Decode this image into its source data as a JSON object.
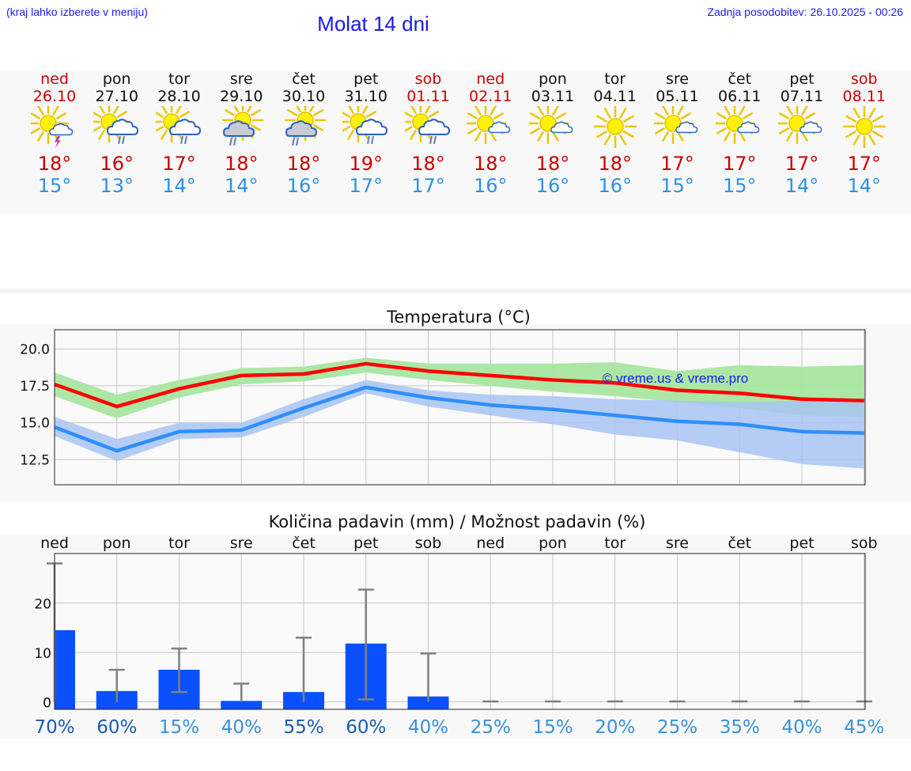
{
  "header": {
    "menu_hint": "(kraj lahko izberete v meniju)",
    "title": "Molat 14 dni",
    "last_update": "Zadnja posodobitev: 26.10.2025 - 00:26"
  },
  "days": [
    {
      "name": "ned",
      "date": "26.10",
      "weekend": true,
      "icon": "sun-cloud-thunder-icon",
      "tmax": "18°",
      "tmin": "15°"
    },
    {
      "name": "pon",
      "date": "27.10",
      "weekend": false,
      "icon": "sun-cloud-rain-icon",
      "tmax": "16°",
      "tmin": "13°"
    },
    {
      "name": "tor",
      "date": "28.10",
      "weekend": false,
      "icon": "sun-cloud-rain-icon",
      "tmax": "17°",
      "tmin": "14°"
    },
    {
      "name": "sre",
      "date": "29.10",
      "weekend": false,
      "icon": "sun-darkcloud-rain-icon",
      "tmax": "18°",
      "tmin": "14°"
    },
    {
      "name": "čet",
      "date": "30.10",
      "weekend": false,
      "icon": "sun-darkcloud-rain-icon",
      "tmax": "18°",
      "tmin": "16°"
    },
    {
      "name": "pet",
      "date": "31.10",
      "weekend": false,
      "icon": "sun-cloud-rain-icon",
      "tmax": "19°",
      "tmin": "17°"
    },
    {
      "name": "sob",
      "date": "01.11",
      "weekend": true,
      "icon": "sun-cloud-rain-icon",
      "tmax": "18°",
      "tmin": "17°"
    },
    {
      "name": "ned",
      "date": "02.11",
      "weekend": true,
      "icon": "sun-small-cloud-icon",
      "tmax": "18°",
      "tmin": "16°"
    },
    {
      "name": "pon",
      "date": "03.11",
      "weekend": false,
      "icon": "sun-small-cloud-icon",
      "tmax": "18°",
      "tmin": "16°"
    },
    {
      "name": "tor",
      "date": "04.11",
      "weekend": false,
      "icon": "sun-icon",
      "tmax": "18°",
      "tmin": "16°"
    },
    {
      "name": "sre",
      "date": "05.11",
      "weekend": false,
      "icon": "sun-small-cloud-icon",
      "tmax": "17°",
      "tmin": "15°"
    },
    {
      "name": "čet",
      "date": "06.11",
      "weekend": false,
      "icon": "sun-small-cloud-icon",
      "tmax": "17°",
      "tmin": "15°"
    },
    {
      "name": "pet",
      "date": "07.11",
      "weekend": false,
      "icon": "sun-small-cloud-icon",
      "tmax": "17°",
      "tmin": "14°"
    },
    {
      "name": "sob",
      "date": "08.11",
      "weekend": true,
      "icon": "sun-icon",
      "tmax": "17°",
      "tmin": "14°"
    }
  ],
  "colors": {
    "weekend": "#cc0000",
    "max_line": "#ff0000",
    "max_band": "#a8e6a0",
    "min_line": "#2e8fff",
    "min_band": "#a8c4f2",
    "overlap_band": "#7fc8a6",
    "precip_bar": "#0a50ff",
    "whisker": "#808080"
  },
  "chart_data": [
    {
      "type": "line",
      "title": "Temperatura (°C)",
      "watermark": "© vreme.us & vreme.pro",
      "x": [
        0,
        1,
        2,
        3,
        4,
        5,
        6,
        7,
        8,
        9,
        10,
        11,
        12,
        13
      ],
      "ylim": [
        10.8,
        21.3
      ],
      "yticks": [
        "20.0",
        "17.5",
        "15.0",
        "12.5"
      ],
      "ytick_values": [
        20.0,
        17.5,
        15.0,
        12.5
      ],
      "grid": true,
      "series": [
        {
          "role": "max",
          "values": [
            17.6,
            16.1,
            17.3,
            18.2,
            18.3,
            19.0,
            18.5,
            18.2,
            17.9,
            17.7,
            17.2,
            17.0,
            16.6,
            16.5
          ],
          "band_low": [
            16.8,
            15.3,
            16.7,
            17.6,
            17.8,
            18.4,
            17.9,
            17.5,
            17.1,
            16.8,
            16.4,
            16.0,
            15.5,
            15.4
          ],
          "band_high": [
            18.4,
            16.9,
            17.9,
            18.7,
            18.8,
            19.4,
            19.0,
            19.0,
            19.0,
            19.1,
            18.5,
            18.9,
            18.8,
            18.9
          ]
        },
        {
          "role": "min",
          "values": [
            14.7,
            13.1,
            14.4,
            14.5,
            16.0,
            17.4,
            16.7,
            16.2,
            15.9,
            15.5,
            15.1,
            14.9,
            14.4,
            14.3
          ],
          "band_low": [
            14.1,
            12.4,
            13.9,
            14.0,
            15.4,
            17.0,
            16.1,
            15.5,
            14.9,
            14.2,
            13.8,
            13.0,
            12.2,
            11.9
          ],
          "band_high": [
            15.4,
            13.9,
            15.0,
            15.0,
            16.6,
            17.9,
            17.2,
            16.9,
            16.8,
            16.6,
            16.5,
            16.4,
            16.5,
            16.5
          ]
        }
      ]
    },
    {
      "type": "bar",
      "title": "Količina padavin (mm) / Možnost padavin (%)",
      "categories": [
        "ned",
        "pon",
        "tor",
        "sre",
        "čet",
        "pet",
        "sob",
        "ned",
        "pon",
        "tor",
        "sre",
        "čet",
        "pet",
        "sob"
      ],
      "values": [
        14.5,
        2.2,
        6.5,
        0.2,
        2.0,
        11.8,
        1.1,
        0,
        0,
        0,
        0,
        0,
        0,
        0
      ],
      "error_low": [
        0,
        0,
        2,
        0,
        0,
        0.5,
        0,
        0,
        0,
        0,
        0,
        0,
        0,
        0
      ],
      "error_high": [
        28.0,
        6.5,
        10.8,
        3.7,
        13.0,
        22.7,
        9.8,
        0.1,
        0.1,
        0.1,
        0.1,
        0.1,
        0.1,
        0.1
      ],
      "ylim": [
        -1.5,
        30.0
      ],
      "yticks": [
        "20",
        "10",
        "0"
      ],
      "ytick_values": [
        20,
        10,
        0
      ],
      "grid": true,
      "probabilities": [
        "70%",
        "60%",
        "15%",
        "40%",
        "55%",
        "60%",
        "40%",
        "25%",
        "15%",
        "20%",
        "25%",
        "35%",
        "40%",
        "45%"
      ],
      "probability_values": [
        70,
        60,
        15,
        40,
        55,
        60,
        40,
        25,
        15,
        20,
        25,
        35,
        40,
        45
      ]
    }
  ]
}
